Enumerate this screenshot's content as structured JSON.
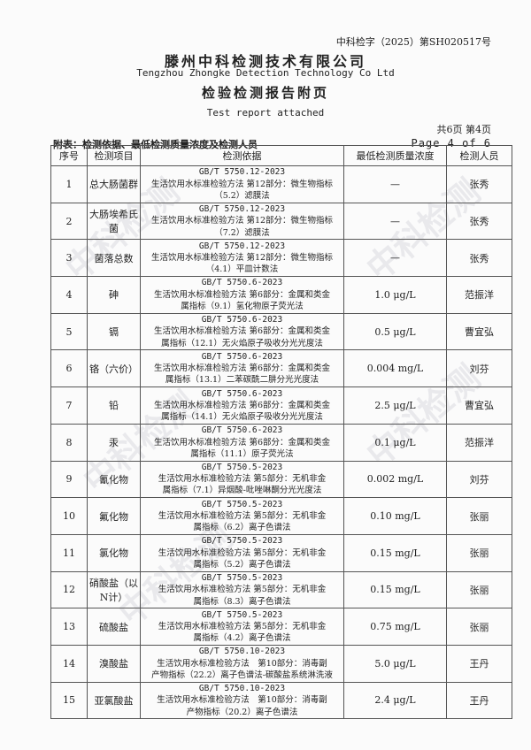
{
  "header": {
    "doc_number": "中科检字（2025）第SH020517号",
    "company_cn": "滕州中科检测技术有限公司",
    "company_en": "Tengzhou Zhongke Detection Technology Co Ltd",
    "title_cn": "检验检测报告附页",
    "title_en": "Test report attached",
    "pages_cn": "共6页 第4页",
    "pages_en": "Page 4 of 6",
    "table_caption": "附表：检测依据、最低检测质量浓度及检测人员"
  },
  "watermark": "中科检测",
  "table": {
    "headers": [
      "序号",
      "检测项目",
      "检测依据",
      "最低检测质量浓度",
      "检测人员"
    ],
    "rows": [
      {
        "no": "1",
        "item": "总大肠菌群",
        "std": "GB/T 5750.12-2023",
        "line1": "生活饮用水标准检验方法 第12部分：微生物指标",
        "line2": "（5.2）滤膜法",
        "limit": "—",
        "person": "张秀"
      },
      {
        "no": "2",
        "item": "大肠埃希氏菌",
        "std": "GB/T 5750.12-2023",
        "line1": "生活饮用水标准检验方法 第12部分：微生物指标",
        "line2": "（7.2）滤膜法",
        "limit": "—",
        "person": "张秀"
      },
      {
        "no": "3",
        "item": "菌落总数",
        "std": "GB/T 5750.12-2023",
        "line1": "生活饮用水标准检验方法 第12部分：微生物指标",
        "line2": "（4.1）平皿计数法",
        "limit": "—",
        "person": "张秀"
      },
      {
        "no": "4",
        "item": "砷",
        "std": "GB/T 5750.6-2023",
        "line1": "生活饮用水标准检验方法 第6部分：金属和类金",
        "line2": "属指标（9.1）氢化物原子荧光法",
        "limit": "1.0 μg/L",
        "person": "范振洋"
      },
      {
        "no": "5",
        "item": "镉",
        "std": "GB/T 5750.6-2023",
        "line1": "生活饮用水标准检验方法 第6部分：金属和类金",
        "line2": "属指标（12.1）无火焰原子吸收分光光度法",
        "limit": "0.5 μg/L",
        "person": "曹宜弘"
      },
      {
        "no": "6",
        "item": "铬（六价）",
        "std": "GB/T 5750.6-2023",
        "line1": "生活饮用水标准检验方法 第6部分：金属和类金",
        "line2": "属指标（13.1）二苯碳酰二肼分光光度法",
        "limit": "0.004 mg/L",
        "person": "刘芬"
      },
      {
        "no": "7",
        "item": "铅",
        "std": "GB/T 5750.6-2023",
        "line1": "生活饮用水标准检验方法 第6部分：金属和类金",
        "line2": "属指标（14.1）无火焰原子吸收分光光度法",
        "limit": "2.5 μg/L",
        "person": "曹宜弘"
      },
      {
        "no": "8",
        "item": "汞",
        "std": "GB/T 5750.6-2023",
        "line1": "生活饮用水标准检验方法 第6部分：金属和类金",
        "line2": "属指标（11.1）原子荧光法",
        "limit": "0.1 μg/L",
        "person": "范振洋"
      },
      {
        "no": "9",
        "item": "氰化物",
        "std": "GB/T 5750.5-2023",
        "line1": "生活饮用水标准检验方法 第5部分：无机非金",
        "line2": "属指标（7.1）异烟酸-吡唑啉酮分光光度法",
        "limit": "0.002 mg/L",
        "person": "刘芬"
      },
      {
        "no": "10",
        "item": "氟化物",
        "std": "GB/T 5750.5-2023",
        "line1": "生活饮用水标准检验方法 第5部分：无机非金",
        "line2": "属指标（6.2）离子色谱法",
        "limit": "0.10 mg/L",
        "person": "张丽"
      },
      {
        "no": "11",
        "item": "氯化物",
        "std": "GB/T 5750.5-2023",
        "line1": "生活饮用水标准检验方法 第5部分：无机非金",
        "line2": "属指标（5.2）离子色谱法",
        "limit": "0.15 mg/L",
        "person": "张丽"
      },
      {
        "no": "12",
        "item": "硝酸盐（以N计）",
        "std": "GB/T 5750.5-2023",
        "line1": "生活饮用水标准检验方法 第5部分：无机非金",
        "line2": "属指标（8.3）离子色谱法",
        "limit": "0.15 mg/L",
        "person": "张丽"
      },
      {
        "no": "13",
        "item": "硫酸盐",
        "std": "GB/T 5750.5-2023",
        "line1": "生活饮用水标准检验方法 第5部分：无机非金",
        "line2": "属指标（4.2）离子色谱法",
        "limit": "0.75 mg/L",
        "person": "张丽"
      },
      {
        "no": "14",
        "item": "溴酸盐",
        "std": "GB/T 5750.10-2023",
        "line1": "生活饮用水标准检验方法　第10部分：消毒副",
        "line2": "产物指标（22.2）离子色谱法-碳酸盐系统淋洗液",
        "limit": "5.0 μg/L",
        "person": "王丹"
      },
      {
        "no": "15",
        "item": "亚氯酸盐",
        "std": "GB/T 5750.10-2023",
        "line1": "生活饮用水标准检验方法　第10部分：消毒副",
        "line2": "产物指标（20.2）离子色谱法",
        "limit": "2.4 μg/L",
        "person": "王丹"
      }
    ]
  }
}
